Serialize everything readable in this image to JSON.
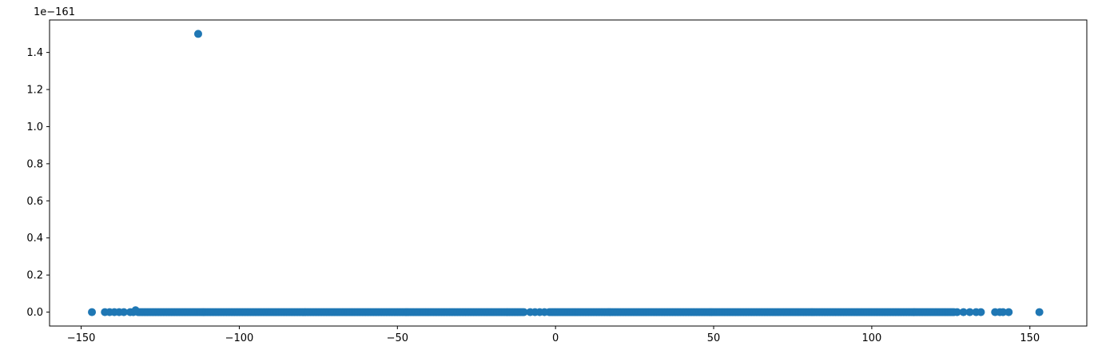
{
  "chart_data": {
    "type": "scatter",
    "title": "",
    "xlabel": "",
    "ylabel": "",
    "y_scale_label": "1e−161",
    "xlim": [
      -160,
      168
    ],
    "ylim": [
      -0.075,
      1.575
    ],
    "xticks": [
      -150,
      -100,
      -50,
      0,
      50,
      100,
      150
    ],
    "xtick_labels": [
      "−150",
      "−100",
      "−50",
      "0",
      "50",
      "100",
      "150"
    ],
    "yticks": [
      0.0,
      0.2,
      0.4,
      0.6,
      0.8,
      1.0,
      1.2,
      1.4
    ],
    "ytick_labels": [
      "0.0",
      "0.2",
      "0.4",
      "0.6",
      "0.8",
      "1.0",
      "1.2",
      "1.4"
    ],
    "grid": false,
    "color": "#1f77b4",
    "points": [
      {
        "x": -146.6,
        "y": 0.0
      },
      {
        "x": -142.5,
        "y": 0.0
      },
      {
        "x": -141.0,
        "y": 0.0
      },
      {
        "x": -139.5,
        "y": 0.0
      },
      {
        "x": -138.0,
        "y": 0.0
      },
      {
        "x": -136.5,
        "y": 0.0
      },
      {
        "x": -134.5,
        "y": 0.0
      },
      {
        "x": -133.5,
        "y": 0.0
      },
      {
        "x": -132.8,
        "y": 0.01
      },
      {
        "x": -113.0,
        "y": 1.5
      },
      {
        "x": -8.0,
        "y": 0.0
      },
      {
        "x": -6.5,
        "y": 0.0
      },
      {
        "x": -5.0,
        "y": 0.0
      },
      {
        "x": -3.5,
        "y": 0.0
      },
      {
        "x": 127.0,
        "y": 0.0
      },
      {
        "x": 129.0,
        "y": 0.0
      },
      {
        "x": 131.0,
        "y": 0.0
      },
      {
        "x": 133.0,
        "y": 0.0
      },
      {
        "x": 134.5,
        "y": 0.0
      },
      {
        "x": 139.0,
        "y": 0.0
      },
      {
        "x": 140.5,
        "y": 0.0
      },
      {
        "x": 141.5,
        "y": 0.0
      },
      {
        "x": 143.3,
        "y": 0.0
      },
      {
        "x": 153.0,
        "y": 0.0
      }
    ],
    "dense_bands": [
      {
        "x_start": -132.0,
        "x_end": -10.0,
        "y": 0.0
      },
      {
        "x_start": -2.0,
        "x_end": 126.0,
        "y": 0.0
      }
    ]
  }
}
